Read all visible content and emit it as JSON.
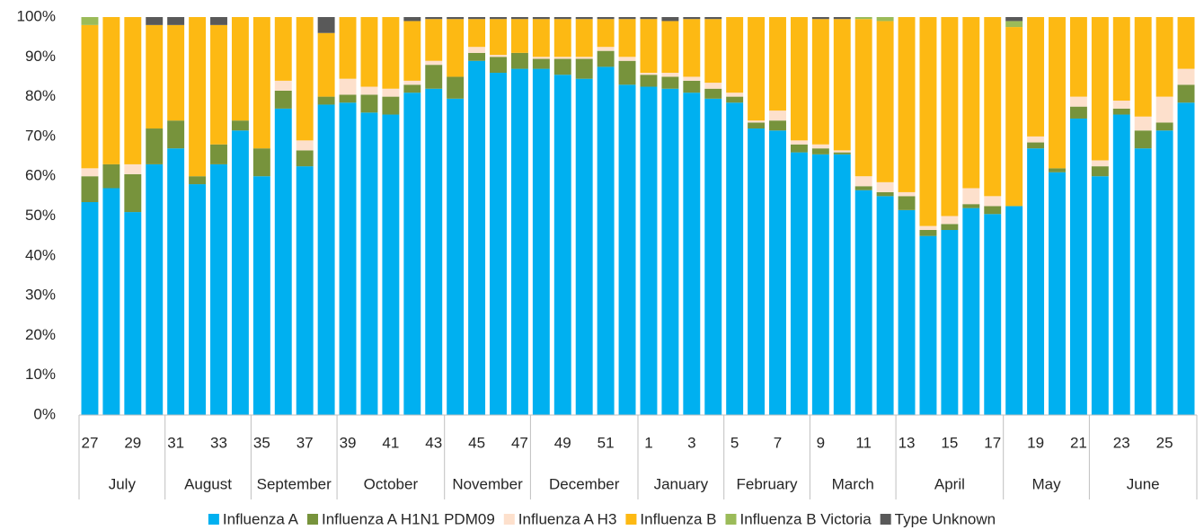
{
  "chart_data": {
    "type": "stacked_bar",
    "categories": [
      "27",
      null,
      "29",
      null,
      "31",
      null,
      "33",
      null,
      "35",
      null,
      "37",
      null,
      "39",
      null,
      "41",
      null,
      "43",
      null,
      "45",
      null,
      "47",
      null,
      "49",
      null,
      "51",
      null,
      "1",
      null,
      "3",
      null,
      "5",
      null,
      "7",
      null,
      "9",
      null,
      "11",
      null,
      "13",
      null,
      "15",
      null,
      "17",
      null,
      "19",
      null,
      "21",
      null,
      "23",
      null,
      "25",
      null
    ],
    "x_groups": [
      {
        "label": "July",
        "count": 4
      },
      {
        "label": "August",
        "count": 4
      },
      {
        "label": "September",
        "count": 4
      },
      {
        "label": "October",
        "count": 5
      },
      {
        "label": "November",
        "count": 4
      },
      {
        "label": "December",
        "count": 5
      },
      {
        "label": "January",
        "count": 4
      },
      {
        "label": "February",
        "count": 4
      },
      {
        "label": "March",
        "count": 4
      },
      {
        "label": "April",
        "count": 5
      },
      {
        "label": "May",
        "count": 4
      },
      {
        "label": "June",
        "count": 5
      }
    ],
    "series": [
      {
        "name": "Influenza A",
        "color": "#00b0f0",
        "values": [
          53.5,
          57,
          51,
          63,
          67,
          58,
          63,
          71.5,
          60,
          77,
          62.5,
          78,
          78.5,
          76,
          75.5,
          81,
          82,
          79.5,
          89,
          86,
          87,
          87,
          85.5,
          84.5,
          87.5,
          83,
          82.5,
          82,
          81,
          79.5,
          78.5,
          72,
          71.5,
          66,
          65.5,
          65.5,
          56.5,
          55,
          51.5,
          45,
          46.5,
          52,
          50.5,
          52.5,
          67,
          61,
          74.5,
          60,
          75.5,
          67,
          71.5,
          78.5
        ]
      },
      {
        "name": "Influenza A H1N1 PDM09",
        "color": "#77933c",
        "values": [
          6.5,
          6,
          9.5,
          9,
          7,
          2,
          5,
          2.5,
          7,
          4.5,
          4,
          2,
          2,
          4.5,
          4.5,
          2,
          6,
          5.5,
          2,
          4,
          4,
          2.5,
          4,
          5,
          4,
          6,
          3,
          3,
          3,
          2.5,
          1.5,
          1.5,
          2.5,
          2,
          1.5,
          0.5,
          1,
          1,
          3.5,
          1.5,
          1.5,
          1,
          2,
          0,
          1.5,
          1,
          3,
          2.5,
          1.5,
          4.5,
          2,
          4.5
        ]
      },
      {
        "name": "Influenza A H3",
        "color": "#fde0cc",
        "values": [
          2,
          0,
          2.5,
          0,
          0,
          0,
          0,
          0,
          0,
          2.5,
          2.5,
          0,
          4,
          2,
          2,
          1,
          1,
          0,
          1.5,
          0.5,
          0,
          0.5,
          0.5,
          0.5,
          1,
          1,
          0.5,
          1,
          1,
          1.5,
          1,
          0.5,
          2.5,
          1,
          1,
          0.5,
          2.5,
          2.5,
          1,
          1,
          2,
          4,
          2.5,
          0,
          1.5,
          0,
          2.5,
          1.5,
          2,
          3.5,
          6.5,
          4
        ]
      },
      {
        "name": "Influenza B",
        "color": "#fdb913",
        "values": [
          36,
          37,
          37,
          26,
          24,
          40,
          30,
          26,
          33,
          16,
          31,
          16,
          15.5,
          17.5,
          18,
          15,
          10.5,
          14.5,
          7,
          9,
          8.5,
          9.5,
          9.5,
          9.5,
          7,
          9.5,
          13.5,
          13,
          14.5,
          16,
          19,
          26,
          23.5,
          31,
          31.5,
          33,
          39.5,
          40.5,
          44,
          52.5,
          50,
          43,
          45,
          45,
          30,
          38,
          20,
          36,
          21,
          25,
          20,
          13
        ]
      },
      {
        "name": "Influenza B Victoria",
        "color": "#9bbb59",
        "values": [
          2,
          0,
          0,
          0,
          0,
          0,
          0,
          0,
          0,
          0,
          0,
          0,
          0,
          0,
          0,
          0,
          0,
          0,
          0,
          0,
          0,
          0,
          0,
          0,
          0,
          0,
          0,
          0,
          0,
          0,
          0,
          0,
          0,
          0,
          0,
          0,
          0.5,
          1,
          0,
          0,
          0,
          0,
          0,
          1.5,
          0,
          0,
          0,
          0,
          0,
          0,
          0,
          0
        ]
      },
      {
        "name": "Type Unknown",
        "color": "#595959",
        "values": [
          0,
          0,
          0,
          2,
          2,
          0,
          2,
          0,
          0,
          0,
          0,
          4,
          0,
          0,
          0,
          1,
          0.5,
          0.5,
          0.5,
          0.5,
          0.5,
          0.5,
          0.5,
          0.5,
          0.5,
          0.5,
          0.5,
          1,
          0.5,
          0.5,
          0,
          0,
          0,
          0,
          0.5,
          0.5,
          0,
          0,
          0,
          0,
          0,
          0,
          0,
          1,
          0,
          0,
          0,
          0,
          0,
          0,
          0,
          0
        ]
      }
    ],
    "ylim": [
      0,
      100
    ],
    "yticks": [
      {
        "value": 0,
        "label": "0%"
      },
      {
        "value": 10,
        "label": "10%"
      },
      {
        "value": 20,
        "label": "20%"
      },
      {
        "value": 30,
        "label": "30%"
      },
      {
        "value": 40,
        "label": "40%"
      },
      {
        "value": 50,
        "label": "50%"
      },
      {
        "value": 60,
        "label": "60%"
      },
      {
        "value": 70,
        "label": "70%"
      },
      {
        "value": 80,
        "label": "80%"
      },
      {
        "value": 90,
        "label": "90%"
      },
      {
        "value": 100,
        "label": "100%"
      }
    ],
    "legend": "bottom"
  }
}
